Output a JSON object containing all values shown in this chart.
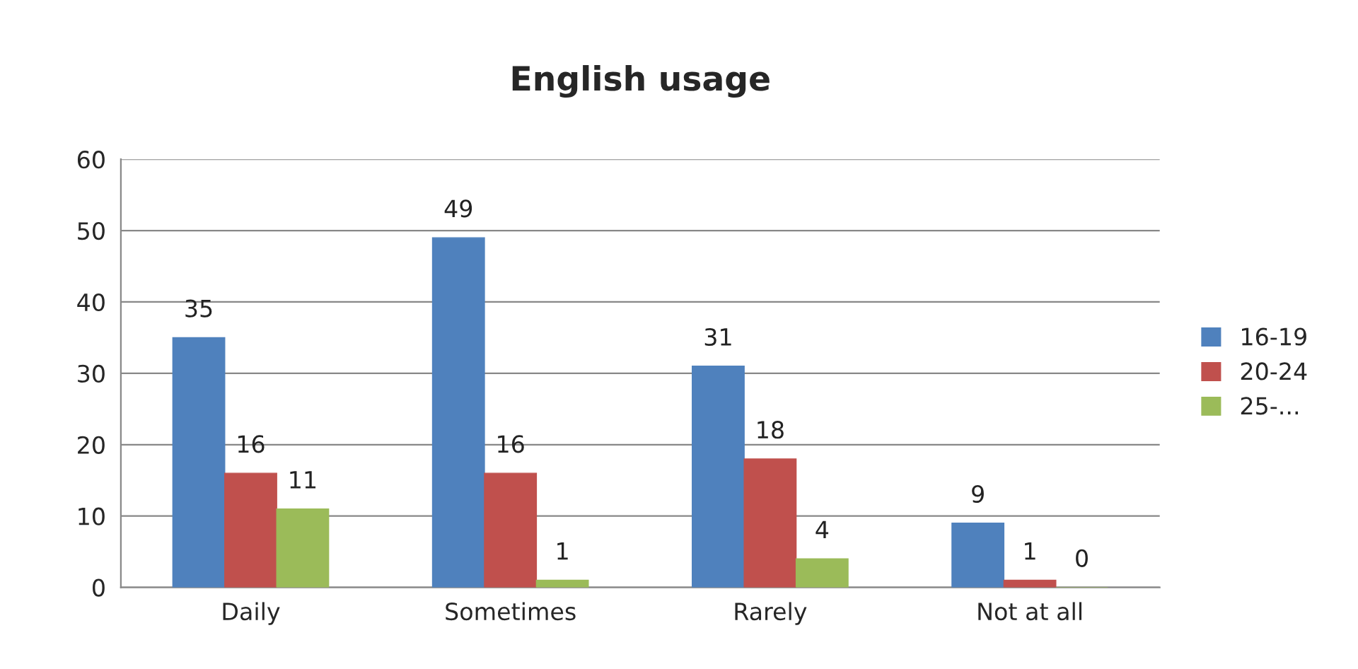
{
  "chart_data": {
    "type": "bar",
    "title": "English usage",
    "categories": [
      "Daily",
      "Sometimes",
      "Rarely",
      "Not at all"
    ],
    "series": [
      {
        "name": "16-19",
        "color": "#4f81bd",
        "values": [
          35,
          49,
          31,
          9
        ]
      },
      {
        "name": "20-24",
        "color": "#c0504d",
        "values": [
          16,
          16,
          18,
          1
        ]
      },
      {
        "name": "25-...",
        "color": "#9bbb59",
        "values": [
          11,
          1,
          4,
          0
        ]
      }
    ],
    "ylim": [
      0,
      60
    ],
    "yticks": [
      0,
      10,
      20,
      30,
      40,
      50,
      60
    ],
    "grid": "y",
    "legend": "right",
    "data_labels": true
  }
}
